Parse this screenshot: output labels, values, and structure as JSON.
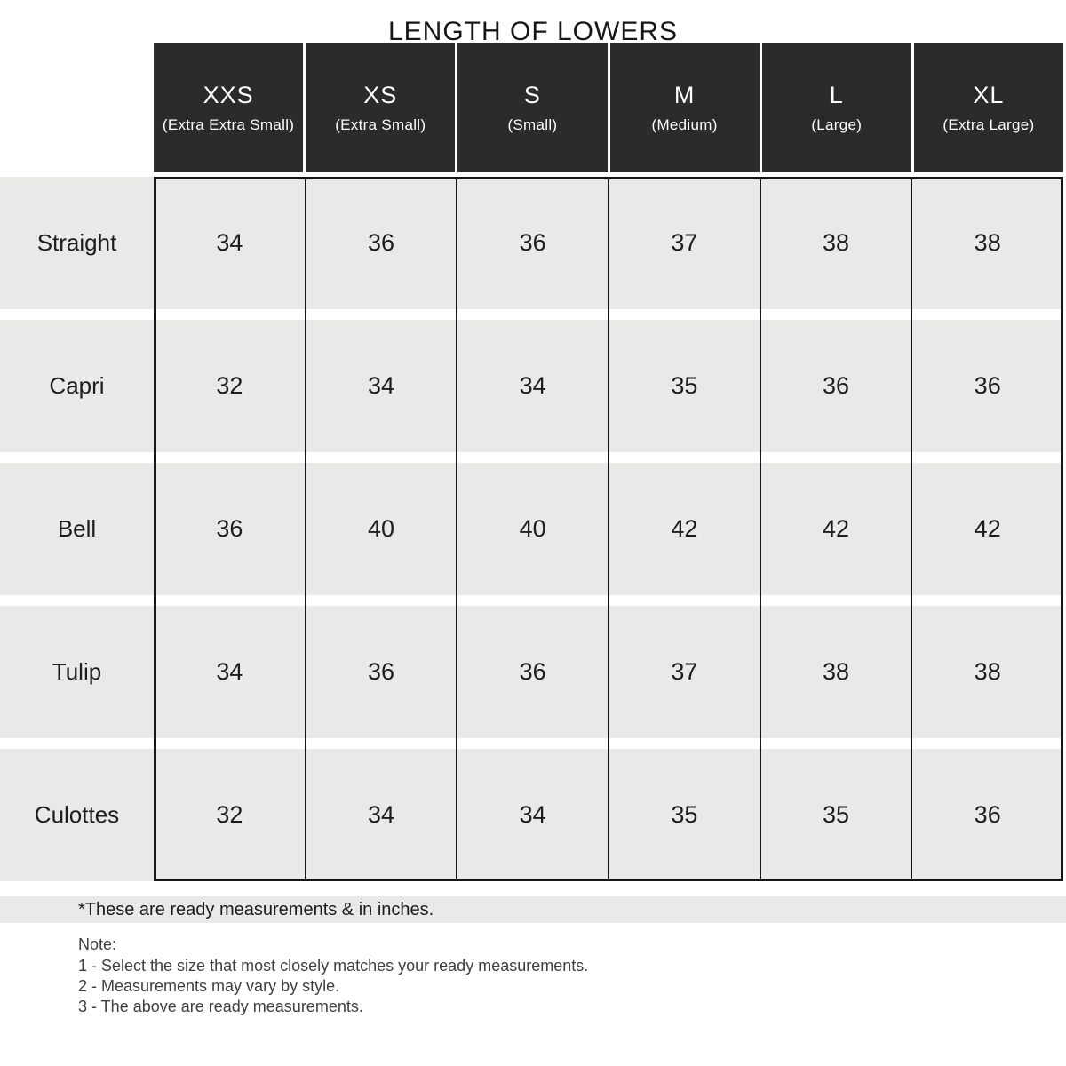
{
  "title": "LENGTH OF LOWERS",
  "table": {
    "columns": [
      {
        "code": "XXS",
        "label": "(Extra Extra Small)"
      },
      {
        "code": "XS",
        "label": "(Extra Small)"
      },
      {
        "code": "S",
        "label": "(Small)"
      },
      {
        "code": "M",
        "label": "(Medium)"
      },
      {
        "code": "L",
        "label": "(Large)"
      },
      {
        "code": "XL",
        "label": "(Extra Large)"
      }
    ],
    "rows": [
      {
        "style": "Straight",
        "values": [
          "34",
          "36",
          "36",
          "37",
          "38",
          "38"
        ]
      },
      {
        "style": "Capri",
        "values": [
          "32",
          "34",
          "34",
          "35",
          "36",
          "36"
        ]
      },
      {
        "style": "Bell",
        "values": [
          "36",
          "40",
          "40",
          "42",
          "42",
          "42"
        ]
      },
      {
        "style": "Tulip",
        "values": [
          "34",
          "36",
          "36",
          "37",
          "38",
          "38"
        ]
      },
      {
        "style": "Culottes",
        "values": [
          "32",
          "34",
          "34",
          "35",
          "35",
          "36"
        ]
      }
    ]
  },
  "footnote": "*These are ready measurements & in inches.",
  "notes": {
    "heading": "Note:",
    "items": [
      "1 - Select the size that most closely matches your ready measurements.",
      "2 - Measurements may vary by style.",
      "3 - The above are ready measurements."
    ]
  },
  "colors": {
    "header_bg": "#2b2b2b",
    "header_text": "#ffffff",
    "row_bg": "#e9e9e8",
    "border": "#161616"
  }
}
